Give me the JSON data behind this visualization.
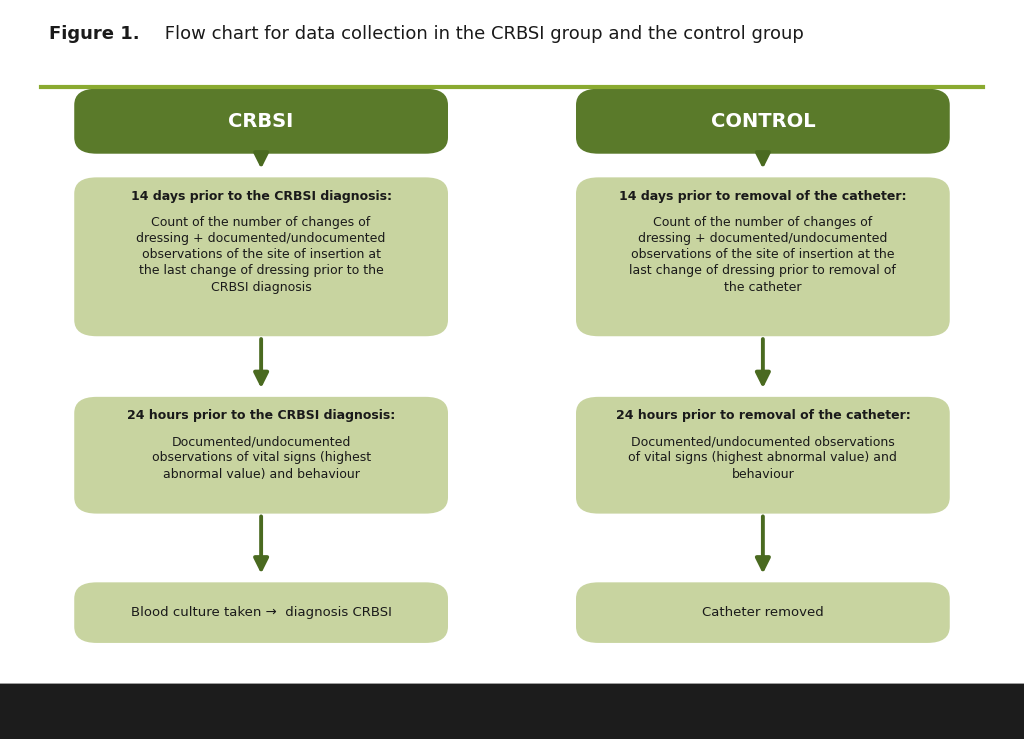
{
  "title_bold": "Figure 1.",
  "title_normal": " Flow chart for data collection in the CRBSI group and the control group",
  "bg_color": "#ffffff",
  "dark_green": "#5a7a2a",
  "light_green": "#c8d4a0",
  "arrow_green": "#4a6a20",
  "separator_color": "#8aaa30",
  "text_dark": "#1a1a1a",
  "bottom_bar": "#1c1c1c",
  "left_header": "CRBSI",
  "right_header": "CONTROL",
  "left_box1_bold": "14 days prior to the CRBSI diagnosis:",
  "left_box1_normal": "Count of the number of changes of\ndressing + documented/undocumented\nobservations of the site of insertion at\nthe last change of dressing prior to the\nCRBSI diagnosis",
  "left_box2_bold": "24 hours prior to the CRBSI diagnosis:",
  "left_box2_normal": "Documented/undocumented\nobservations of vital signs (highest\nabnormal value) and behaviour",
  "left_box3": "Blood culture taken →  diagnosis CRBSI",
  "right_box1_bold": "14 days prior to removal of the catheter:",
  "right_box1_normal": "Count of the number of changes of\ndressing + documented/undocumented\nobservations of the site of insertion at the\nlast change of dressing prior to removal of\nthe catheter",
  "right_box2_bold": "24 hours prior to removal of the catheter:",
  "right_box2_normal": "Documented/undocumented observations\nof vital signs (highest abnormal value) and\nbehaviour",
  "right_box3": "Catheter removed",
  "fig_width": 10.24,
  "fig_height": 7.39,
  "dpi": 100
}
